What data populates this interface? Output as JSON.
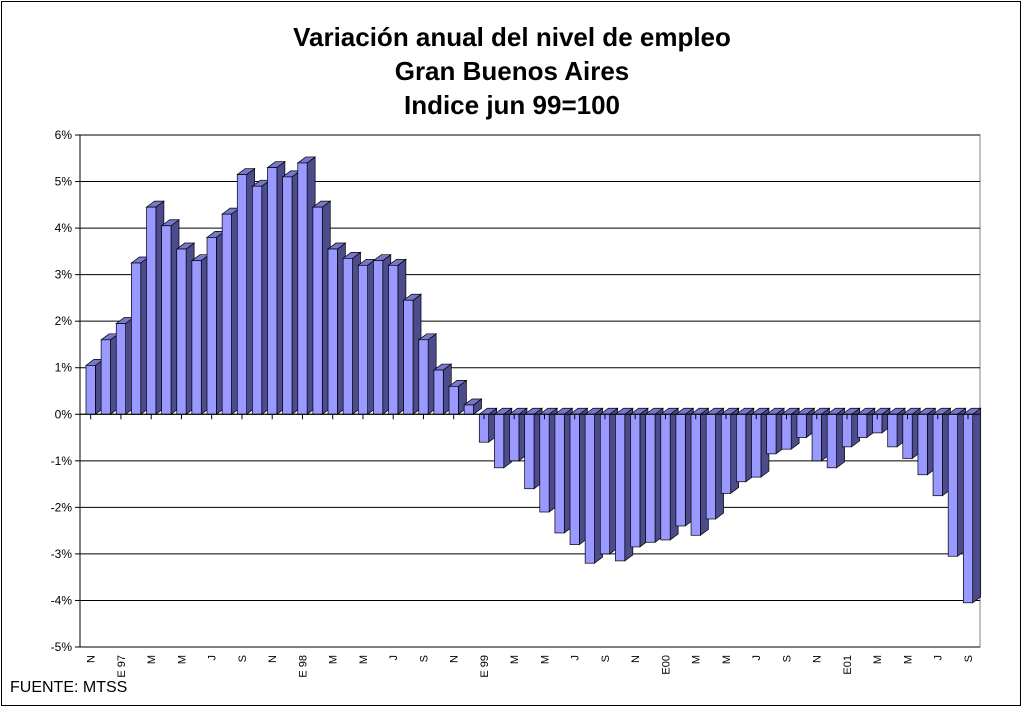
{
  "title": {
    "line1": "Variación anual del nivel de empleo",
    "line2": "Gran Buenos Aires",
    "line3": "Indice jun 99=100"
  },
  "source": "FUENTE: MTSS",
  "colors": {
    "bar_front": "#9999FF",
    "bar_side": "#4C4C8C",
    "bar_top": "#7777CC",
    "gridline": "#000000"
  },
  "chart_data": {
    "type": "bar",
    "title": "Variación anual del nivel de empleo Gran Buenos Aires Indice jun 99=100",
    "xlabel": "",
    "ylabel": "",
    "ylim": [
      -5,
      6
    ],
    "yticks": [
      "-5%",
      "-4%",
      "-3%",
      "-2%",
      "-1%",
      "0%",
      "1%",
      "2%",
      "3%",
      "4%",
      "5%",
      "6%"
    ],
    "grid": true,
    "x_tick_labels": [
      "N",
      "E 97",
      "M",
      "M",
      "J",
      "S",
      "N",
      "E 98",
      "M",
      "M",
      "J",
      "S",
      "N",
      "E 99",
      "M",
      "M",
      "J",
      "S",
      "N",
      "E00",
      "M",
      "M",
      "J",
      "S",
      "N",
      "E01",
      "M",
      "M",
      "J",
      "S"
    ],
    "values": [
      1.05,
      1.6,
      1.95,
      3.25,
      4.45,
      4.05,
      3.55,
      3.3,
      3.8,
      4.3,
      5.15,
      4.9,
      5.3,
      5.1,
      5.4,
      4.45,
      3.55,
      3.35,
      3.2,
      3.3,
      3.2,
      2.45,
      1.6,
      0.95,
      0.6,
      0.2,
      -0.6,
      -1.15,
      -1.0,
      -1.6,
      -2.1,
      -2.55,
      -2.8,
      -3.2,
      -3.0,
      -3.15,
      -2.85,
      -2.75,
      -2.7,
      -2.4,
      -2.6,
      -2.25,
      -1.7,
      -1.45,
      -1.35,
      -0.85,
      -0.75,
      -0.5,
      -1.0,
      -1.15,
      -0.7,
      -0.5,
      -0.4,
      -0.7,
      -0.95,
      -1.3,
      -1.75,
      -3.05,
      -4.05
    ]
  }
}
